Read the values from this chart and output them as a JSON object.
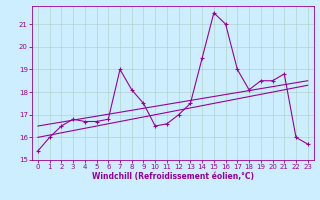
{
  "xlabel": "Windchill (Refroidissement éolien,°C)",
  "ylabel": "",
  "background_color": "#cceeff",
  "line_color": "#990099",
  "grid_color": "#aaccbb",
  "xlim": [
    -0.5,
    23.5
  ],
  "ylim": [
    15,
    21.8
  ],
  "yticks": [
    15,
    16,
    17,
    18,
    19,
    20,
    21
  ],
  "xticks": [
    0,
    1,
    2,
    3,
    4,
    5,
    6,
    7,
    8,
    9,
    10,
    11,
    12,
    13,
    14,
    15,
    16,
    17,
    18,
    19,
    20,
    21,
    22,
    23
  ],
  "data_x": [
    0,
    1,
    2,
    3,
    4,
    5,
    6,
    7,
    8,
    9,
    10,
    11,
    12,
    13,
    14,
    15,
    16,
    17,
    18,
    19,
    20,
    21,
    22,
    23
  ],
  "data_y": [
    15.4,
    16.0,
    16.5,
    16.8,
    16.7,
    16.7,
    16.8,
    19.0,
    18.1,
    17.5,
    16.5,
    16.6,
    17.0,
    17.5,
    19.5,
    21.5,
    21.0,
    19.0,
    18.1,
    18.5,
    18.5,
    18.8,
    16.0,
    15.7
  ],
  "trend1_x": [
    0,
    23
  ],
  "trend1_y": [
    16.5,
    18.5
  ],
  "trend2_x": [
    0,
    23
  ],
  "trend2_y": [
    16.0,
    18.3
  ],
  "tick_fontsize": 5,
  "xlabel_fontsize": 5.5,
  "lw": 0.8
}
